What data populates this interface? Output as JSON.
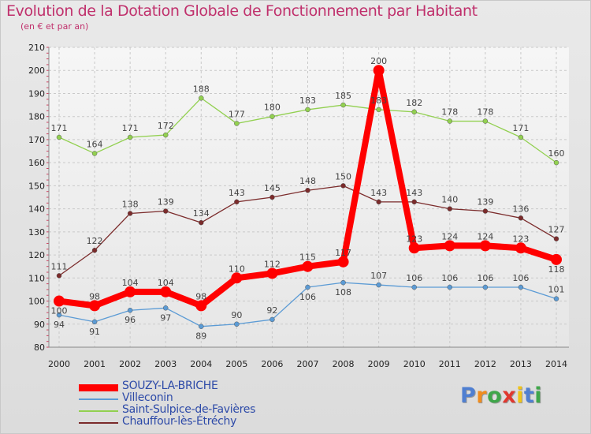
{
  "header": {
    "title": "Evolution de la Dotation Globale de Fonctionnement par Habitant",
    "subtitle": "(en € et par an)"
  },
  "brand": {
    "logo_text": "Proxiti"
  },
  "chart_data": {
    "type": "line",
    "title": "Evolution de la Dotation Globale de Fonctionnement par Habitant",
    "subtitle": "(en € et par an)",
    "xlabel": "",
    "ylabel": "",
    "ylim": [
      80,
      210
    ],
    "yticks": [
      80,
      90,
      100,
      110,
      120,
      130,
      140,
      150,
      160,
      170,
      180,
      190,
      200,
      210
    ],
    "grid": true,
    "legend_position": "bottom-left",
    "x": [
      "2000",
      "2001",
      "2002",
      "2003",
      "2004",
      "2005",
      "2006",
      "2007",
      "2008",
      "2009",
      "2010",
      "2011",
      "2012",
      "2013",
      "2014"
    ],
    "series": [
      {
        "name": "SOUZY-LA-BRICHE",
        "color": "#ff0000",
        "emphasis": true,
        "values": [
          100,
          98,
          104,
          104,
          98,
          110,
          112,
          115,
          117,
          200,
          123,
          124,
          124,
          123,
          118
        ]
      },
      {
        "name": "Villeconin",
        "color": "#5b9bd5",
        "emphasis": false,
        "values": [
          94,
          91,
          96,
          97,
          89,
          90,
          92,
          106,
          108,
          107,
          106,
          106,
          106,
          106,
          101
        ]
      },
      {
        "name": "Saint-Sulpice-de-Favières",
        "color": "#92d050",
        "emphasis": false,
        "values": [
          171,
          164,
          171,
          172,
          188,
          177,
          180,
          183,
          185,
          183,
          182,
          178,
          178,
          171,
          160
        ]
      },
      {
        "name": "Chauffour-lès-Étréchy",
        "color": "#7b2b2b",
        "emphasis": false,
        "values": [
          111,
          122,
          138,
          139,
          134,
          143,
          145,
          148,
          150,
          143,
          143,
          140,
          139,
          136,
          127
        ]
      }
    ]
  }
}
